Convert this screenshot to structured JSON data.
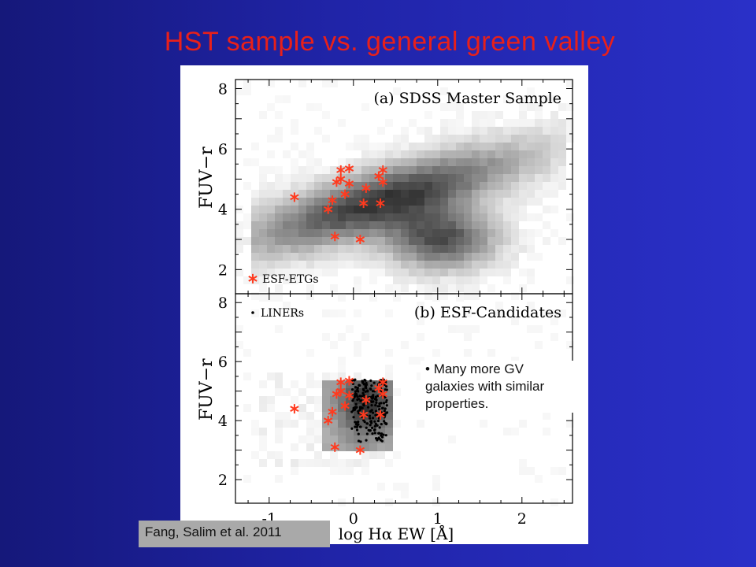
{
  "slide": {
    "title": "HST sample vs. general green valley",
    "note": "Many more GV galaxies with similar properties.",
    "caption": "Fang, Salim et al. 2011"
  },
  "colors": {
    "background": "#2024a8",
    "title": "#e8201a",
    "marker": "#ff3b1f",
    "caption_box": "#a9a9a9"
  },
  "chart_data": [
    {
      "type": "scatter",
      "title": "(a) SDSS Master Sample",
      "xlabel": "log Hα EW [Å]",
      "ylabel": "FUV−r",
      "xlim": [
        -1.4,
        2.6
      ],
      "ylim": [
        1.2,
        8.3
      ],
      "x_ticks": [
        "-1",
        "0",
        "1",
        "2"
      ],
      "y_ticks": [
        "2",
        "4",
        "6",
        "8"
      ],
      "background": "grayscale density of SDSS galaxies, peak near (1.0, 3.0)",
      "legend": [
        {
          "label": "ESF-ETGs",
          "marker": "red asterisk",
          "position": "bottom-left"
        }
      ],
      "series": [
        {
          "name": "ESF-ETGs",
          "points": [
            [
              -0.7,
              4.4
            ],
            [
              -0.3,
              4.0
            ],
            [
              -0.25,
              4.3
            ],
            [
              -0.2,
              4.9
            ],
            [
              -0.15,
              5.0
            ],
            [
              -0.15,
              5.3
            ],
            [
              -0.1,
              4.5
            ],
            [
              -0.05,
              4.85
            ],
            [
              -0.05,
              5.35
            ],
            [
              0.12,
              4.2
            ],
            [
              0.15,
              4.7
            ],
            [
              0.3,
              5.1
            ],
            [
              0.32,
              4.2
            ],
            [
              0.35,
              5.3
            ],
            [
              0.35,
              4.9
            ],
            [
              -0.22,
              3.1
            ],
            [
              0.08,
              3.0
            ]
          ]
        }
      ]
    },
    {
      "type": "scatter",
      "title": "(b) ESF-Candidates",
      "xlabel": "log Hα EW [Å]",
      "ylabel": "FUV−r",
      "xlim": [
        -1.4,
        2.6
      ],
      "ylim": [
        1.2,
        8.3
      ],
      "x_ticks": [
        "-1",
        "0",
        "1",
        "2"
      ],
      "y_ticks": [
        "2",
        "4",
        "6",
        "8"
      ],
      "background": "grayscale density of ESF candidates concentrated at -0.3..0.45, 3.0..5.4",
      "legend": [
        {
          "label": "LINERs",
          "marker": "black dot",
          "position": "top-left"
        }
      ],
      "series": [
        {
          "name": "ESF-ETGs",
          "points": [
            [
              -0.7,
              4.4
            ],
            [
              -0.3,
              4.0
            ],
            [
              -0.25,
              4.3
            ],
            [
              -0.2,
              4.9
            ],
            [
              -0.15,
              5.0
            ],
            [
              -0.15,
              5.3
            ],
            [
              -0.1,
              4.5
            ],
            [
              -0.05,
              4.85
            ],
            [
              -0.05,
              5.35
            ],
            [
              0.12,
              4.2
            ],
            [
              0.15,
              4.7
            ],
            [
              0.3,
              5.1
            ],
            [
              0.32,
              4.2
            ],
            [
              0.35,
              5.3
            ],
            [
              0.35,
              4.9
            ],
            [
              -0.22,
              3.1
            ],
            [
              0.08,
              3.0
            ]
          ]
        },
        {
          "name": "LINERs",
          "points_description": "dense black dots filling x 0.0..0.4, y 3.2..5.4"
        }
      ]
    }
  ]
}
